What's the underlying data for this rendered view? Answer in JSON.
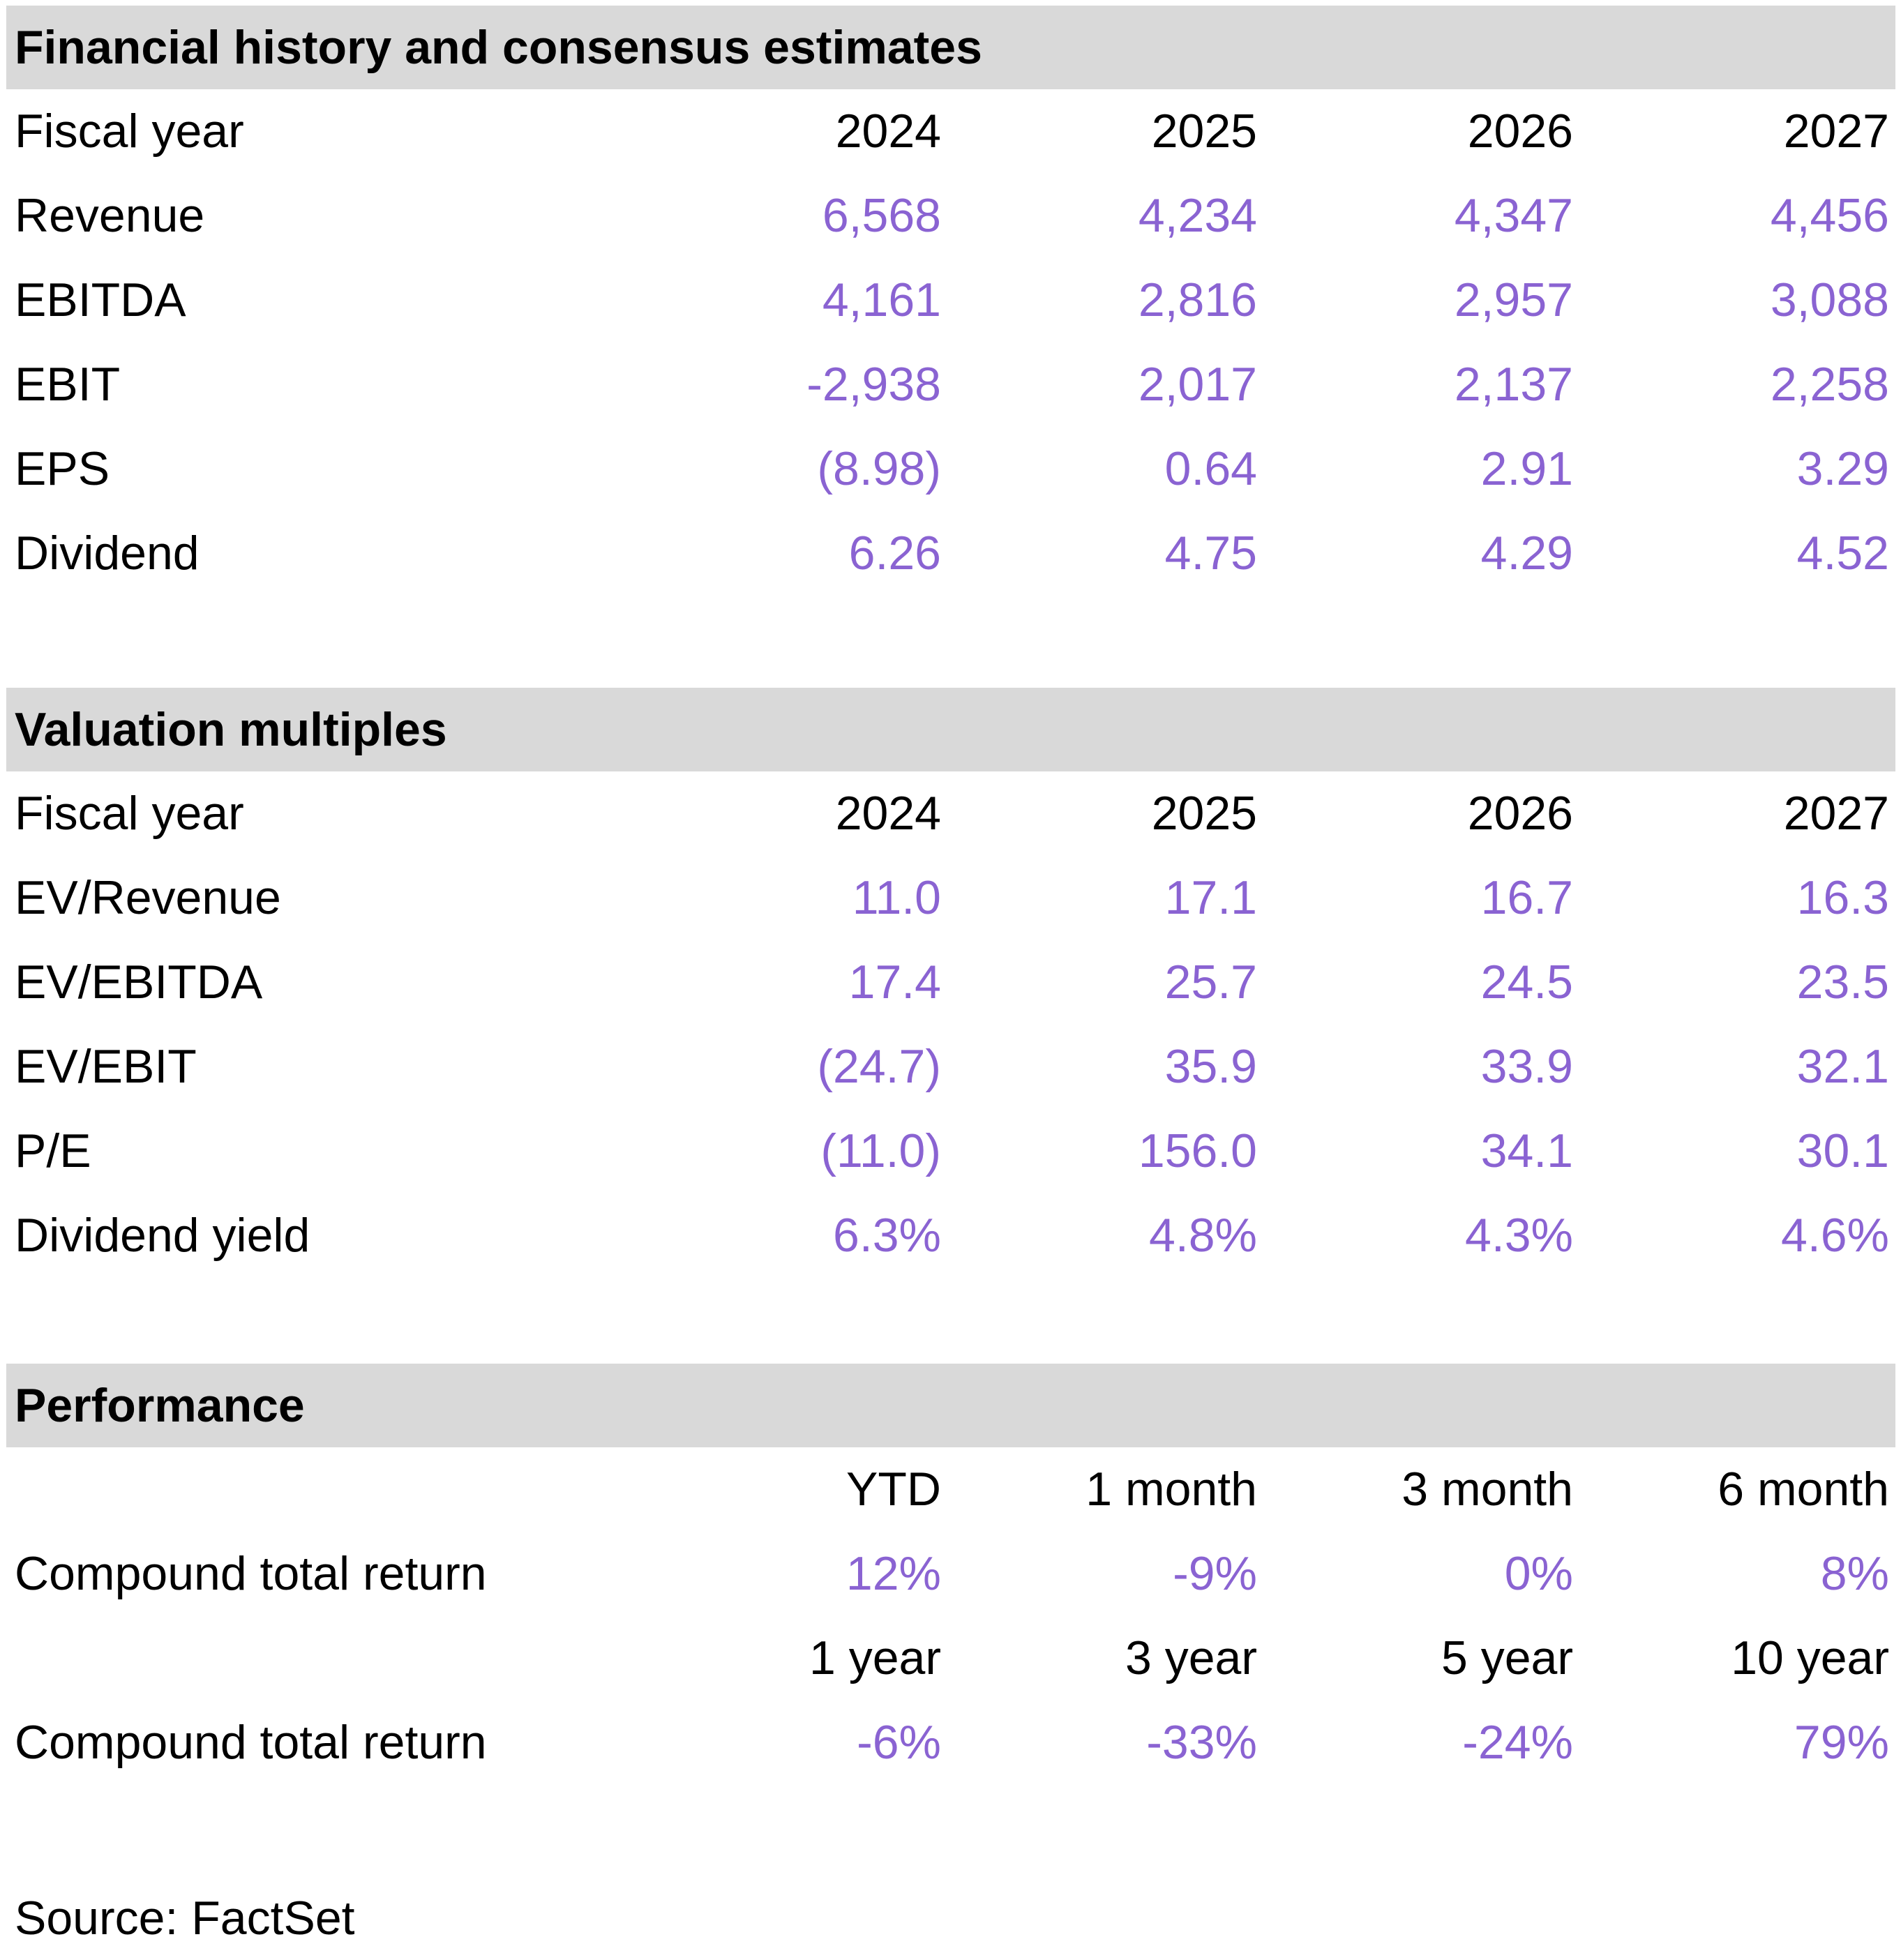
{
  "colors": {
    "header_bg": "#d9d9d9",
    "value_text": "#8a63d2",
    "label_text": "#000000"
  },
  "financial": {
    "title": "Financial history and consensus estimates",
    "header": {
      "label": "Fiscal year",
      "cols": [
        "2024",
        "2025",
        "2026",
        "2027"
      ]
    },
    "rows": [
      {
        "label": "Revenue",
        "values": [
          "6,568",
          "4,234",
          "4,347",
          "4,456"
        ]
      },
      {
        "label": "EBITDA",
        "values": [
          "4,161",
          "2,816",
          "2,957",
          "3,088"
        ]
      },
      {
        "label": "EBIT",
        "values": [
          "-2,938",
          "2,017",
          "2,137",
          "2,258"
        ]
      },
      {
        "label": "EPS",
        "values": [
          "(8.98)",
          "0.64",
          "2.91",
          "3.29"
        ]
      },
      {
        "label": "Dividend",
        "values": [
          "6.26",
          "4.75",
          "4.29",
          "4.52"
        ]
      }
    ]
  },
  "valuation": {
    "title": "Valuation multiples",
    "header": {
      "label": "Fiscal year",
      "cols": [
        "2024",
        "2025",
        "2026",
        "2027"
      ]
    },
    "rows": [
      {
        "label": "EV/Revenue",
        "values": [
          "11.0",
          "17.1",
          "16.7",
          "16.3"
        ]
      },
      {
        "label": "EV/EBITDA",
        "values": [
          "17.4",
          "25.7",
          "24.5",
          "23.5"
        ]
      },
      {
        "label": "EV/EBIT",
        "values": [
          "(24.7)",
          "35.9",
          "33.9",
          "32.1"
        ]
      },
      {
        "label": "P/E",
        "values": [
          "(11.0)",
          "156.0",
          "34.1",
          "30.1"
        ]
      },
      {
        "label": "Dividend yield",
        "values": [
          "6.3%",
          "4.8%",
          "4.3%",
          "4.6%"
        ]
      }
    ]
  },
  "performance": {
    "title": "Performance",
    "header1": {
      "cols": [
        "YTD",
        "1 month",
        "3 month",
        "6 month"
      ]
    },
    "row1": {
      "label": "Compound total return",
      "values": [
        "12%",
        "-9%",
        "0%",
        "8%"
      ]
    },
    "header2": {
      "cols": [
        "1 year",
        "3 year",
        "5 year",
        "10 year"
      ]
    },
    "row2": {
      "label": "Compound total return",
      "values": [
        "-6%",
        "-33%",
        "-24%",
        "79%"
      ]
    }
  },
  "source": "Source: FactSet"
}
